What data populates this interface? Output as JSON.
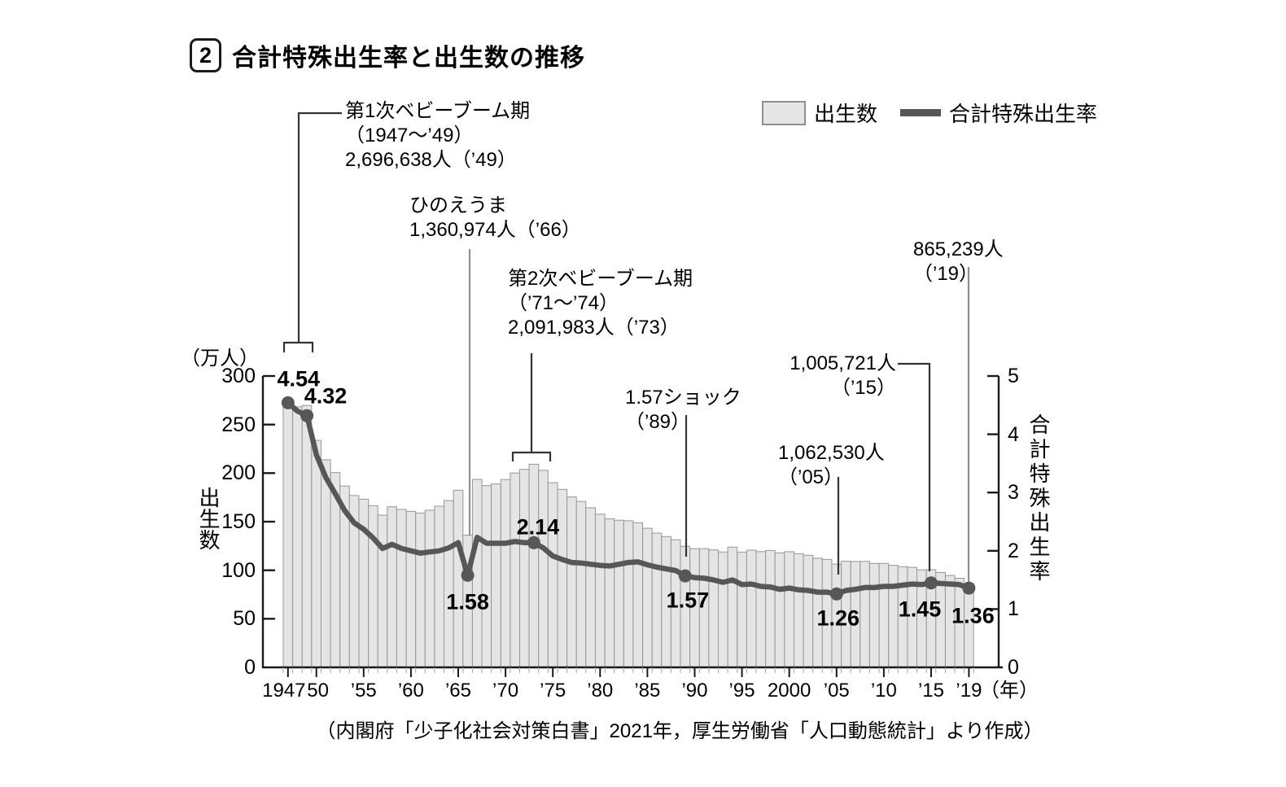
{
  "title": {
    "badge": "2",
    "text": "合計特殊出生率と出生数の推移"
  },
  "legend": {
    "bars_label": "出生数",
    "line_label": "合計特殊出生率"
  },
  "y_left": {
    "unit": "（万人）",
    "axis_title": "出生数",
    "ticks": [
      "300",
      "250",
      "200",
      "150",
      "100",
      "50",
      "0"
    ]
  },
  "y_right": {
    "axis_title": "合計特殊出生率",
    "ticks": [
      "5",
      "4",
      "3",
      "2",
      "1",
      "0"
    ]
  },
  "x_axis": {
    "labels": [
      {
        "year": 1947,
        "text": "1947"
      },
      {
        "year": 1950,
        "text": "50"
      },
      {
        "year": 1955,
        "text": "’55"
      },
      {
        "year": 1960,
        "text": "’60"
      },
      {
        "year": 1965,
        "text": "’65"
      },
      {
        "year": 1970,
        "text": "’70"
      },
      {
        "year": 1975,
        "text": "’75"
      },
      {
        "year": 1980,
        "text": "’80"
      },
      {
        "year": 1985,
        "text": "’85"
      },
      {
        "year": 1990,
        "text": "’90"
      },
      {
        "year": 1995,
        "text": "’95"
      },
      {
        "year": 2000,
        "text": "2000"
      },
      {
        "year": 2005,
        "text": "’05"
      },
      {
        "year": 2010,
        "text": "’10"
      },
      {
        "year": 2015,
        "text": "’15"
      },
      {
        "year": 2019,
        "text": "’19"
      }
    ],
    "unit": "（年）"
  },
  "annotations": {
    "boom1": [
      "第1次ベビーブーム期",
      "（1947～’49）",
      "2,696,638人（’49）"
    ],
    "hinoeuma": [
      "ひのえうま",
      "1,360,974人（’66）"
    ],
    "boom2": [
      "第2次ベビーブーム期",
      "（’71～’74）",
      "2,091,983人（’73）"
    ],
    "shock157": [
      "1.57ショック",
      "（’89）"
    ],
    "births2005": [
      "1,062,530人",
      "（’05）"
    ],
    "births2015": [
      "1,005,721人",
      "（’15）"
    ],
    "births2019": [
      "865,239人",
      "（’19）"
    ]
  },
  "point_labels": [
    {
      "year": 1947,
      "text": "4.54"
    },
    {
      "year": 1949,
      "text": "4.32"
    },
    {
      "year": 1966,
      "text": "1.58"
    },
    {
      "year": 1973,
      "text": "2.14"
    },
    {
      "year": 1989,
      "text": "1.57"
    },
    {
      "year": 2005,
      "text": "1.26"
    },
    {
      "year": 2015,
      "text": "1.45"
    },
    {
      "year": 2019,
      "text": "1.36"
    }
  ],
  "source": "（内閣府「少子化社会対策白書」2021年，厚生労働省「人口動態統計」より作成）",
  "colors": {
    "bar_fill": "#e5e5e5",
    "bar_border": "#969696",
    "line": "#575757",
    "dot": "#575757",
    "axis": "#1a1a1a",
    "connector_dark": "#333333",
    "connector_light": "#8f8f8f",
    "legend_box_fill": "#e5e5e5",
    "legend_box_border": "#8f8f8f"
  },
  "chart_data": {
    "type": "bar+line",
    "title": "合計特殊出生率と出生数の推移",
    "years": [
      1947,
      1948,
      1949,
      1950,
      1951,
      1952,
      1953,
      1954,
      1955,
      1956,
      1957,
      1958,
      1959,
      1960,
      1961,
      1962,
      1963,
      1964,
      1965,
      1966,
      1967,
      1968,
      1969,
      1970,
      1971,
      1972,
      1973,
      1974,
      1975,
      1976,
      1977,
      1978,
      1979,
      1980,
      1981,
      1982,
      1983,
      1984,
      1985,
      1986,
      1987,
      1988,
      1989,
      1990,
      1991,
      1992,
      1993,
      1994,
      1995,
      1996,
      1997,
      1998,
      1999,
      2000,
      2001,
      2002,
      2003,
      2004,
      2005,
      2006,
      2007,
      2008,
      2009,
      2010,
      2011,
      2012,
      2013,
      2014,
      2015,
      2016,
      2017,
      2018,
      2019
    ],
    "series": [
      {
        "name": "出生数",
        "type": "bar",
        "axis": "left",
        "unit": "万人",
        "values": [
          267.9,
          268.2,
          269.7,
          233.8,
          213.8,
          200.5,
          186.8,
          176.9,
          173.1,
          166.5,
          156.7,
          165.3,
          162.6,
          160.6,
          158.9,
          161.8,
          165.9,
          171.7,
          182.4,
          136.1,
          193.6,
          187.1,
          188.9,
          193.4,
          200.1,
          203.9,
          209.2,
          202.9,
          190.1,
          183.3,
          175.5,
          170.9,
          164.3,
          157.7,
          152.9,
          151.5,
          150.9,
          148.9,
          143.2,
          138.3,
          134.7,
          131.4,
          124.7,
          122.2,
          122.3,
          120.9,
          118.8,
          123.8,
          118.7,
          120.7,
          119.2,
          120.3,
          117.8,
          119.1,
          117.1,
          115.4,
          112.4,
          111.1,
          106.3,
          109.3,
          109.0,
          109.1,
          107.0,
          107.1,
          105.1,
          103.7,
          103.0,
          100.4,
          100.6,
          97.7,
          94.6,
          91.8,
          86.5
        ]
      },
      {
        "name": "合計特殊出生率",
        "type": "line",
        "axis": "right",
        "values": [
          4.54,
          4.4,
          4.32,
          3.65,
          3.26,
          2.98,
          2.69,
          2.48,
          2.37,
          2.22,
          2.04,
          2.11,
          2.04,
          2.0,
          1.96,
          1.98,
          2.0,
          2.05,
          2.14,
          1.58,
          2.23,
          2.13,
          2.13,
          2.13,
          2.16,
          2.14,
          2.14,
          2.05,
          1.91,
          1.85,
          1.8,
          1.79,
          1.77,
          1.75,
          1.74,
          1.77,
          1.8,
          1.81,
          1.76,
          1.72,
          1.69,
          1.66,
          1.57,
          1.54,
          1.53,
          1.5,
          1.46,
          1.5,
          1.42,
          1.43,
          1.39,
          1.38,
          1.34,
          1.36,
          1.33,
          1.32,
          1.29,
          1.29,
          1.26,
          1.32,
          1.34,
          1.37,
          1.37,
          1.39,
          1.39,
          1.41,
          1.43,
          1.42,
          1.45,
          1.44,
          1.43,
          1.42,
          1.36
        ]
      }
    ],
    "y_left": {
      "label": "出生数（万人）",
      "range": [
        0,
        300
      ],
      "tick_step": 50
    },
    "y_right": {
      "label": "合計特殊出生率",
      "range": [
        0,
        5
      ],
      "tick_step": 1
    },
    "highlighted_points": [
      {
        "year": 1947,
        "value": 4.54
      },
      {
        "year": 1949,
        "value": 4.32
      },
      {
        "year": 1966,
        "value": 1.58
      },
      {
        "year": 1973,
        "value": 2.14
      },
      {
        "year": 1989,
        "value": 1.57
      },
      {
        "year": 2005,
        "value": 1.26
      },
      {
        "year": 2015,
        "value": 1.45
      },
      {
        "year": 2019,
        "value": 1.36
      }
    ],
    "annotated_birth_counts": [
      {
        "year": 1949,
        "births": "2,696,638人"
      },
      {
        "year": 1966,
        "births": "1,360,974人"
      },
      {
        "year": 1973,
        "births": "2,091,983人"
      },
      {
        "year": 2005,
        "births": "1,062,530人"
      },
      {
        "year": 2015,
        "births": "1,005,721人"
      },
      {
        "year": 2019,
        "births": "865,239人"
      }
    ],
    "legend_position": "top-right",
    "grid": false
  }
}
